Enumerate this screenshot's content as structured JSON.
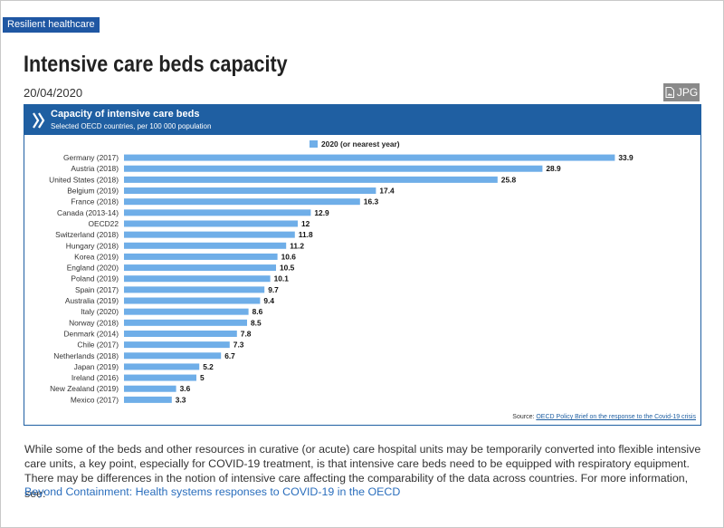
{
  "tag": "Resilient healthcare",
  "page_title": "Intensive care beds capacity",
  "date": "20/04/2020",
  "download_label": "JPG",
  "icons": {
    "download": "file-image-icon",
    "chart_logo": "double-chevron-icon"
  },
  "colors": {
    "header": "#1f5fa2",
    "bar": "#6faee8",
    "tag": "#1f57a3",
    "link": "#2a6ebd"
  },
  "chart_data": {
    "type": "bar",
    "orientation": "horizontal",
    "title": "Capacity of intensive care beds",
    "subtitle": "Selected OECD countries, per 100 000 population",
    "legend": "2020 (or nearest year)",
    "categories": [
      "Germany (2017)",
      "Austria (2018)",
      "United States (2018)",
      "Belgium (2019)",
      "France (2018)",
      "Canada (2013-14)",
      "OECD22",
      "Switzerland (2018)",
      "Hungary (2018)",
      "Korea (2019)",
      "England (2020)",
      "Poland (2019)",
      "Spain (2017)",
      "Australia (2019)",
      "Italy (2020)",
      "Norway (2018)",
      "Denmark (2014)",
      "Chile (2017)",
      "Netherlands (2018)",
      "Japan (2019)",
      "Ireland (2016)",
      "New Zealand (2019)",
      "Mexico (2017)"
    ],
    "values": [
      33.9,
      28.9,
      25.8,
      17.4,
      16.3,
      12.9,
      12,
      11.8,
      11.2,
      10.6,
      10.5,
      10.1,
      9.7,
      9.4,
      8.6,
      8.5,
      7.8,
      7.3,
      6.7,
      5.2,
      5,
      3.6,
      3.3
    ],
    "xlim": [
      0,
      35
    ],
    "source_prefix": "Source:",
    "source_link": "OECD Policy Brief on the response to the Covid-19 crisis"
  },
  "body": {
    "paragraph": "While some of the beds and other resources in curative (or acute) care hospital units may be temporarily converted into flexible intensive care units, a key point, especially for COVID-19 treatment, is that intensive care beds need to be equipped with respiratory equipment. There may be differences in the notion of intensive care affecting the comparability of the data across countries. For more information, see:",
    "link": "Beyond Containment: Health systems responses to COVID-19 in the OECD"
  }
}
